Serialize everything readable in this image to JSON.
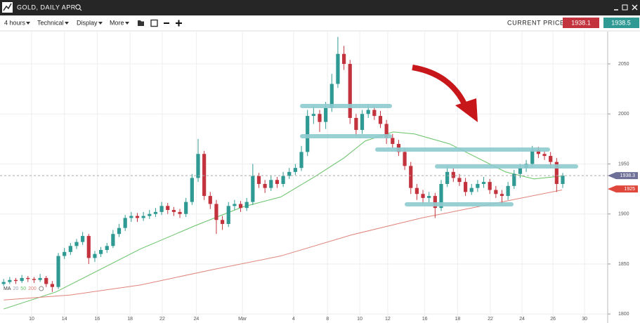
{
  "header": {
    "title": "GOLD, DAILY APR"
  },
  "toolbar": {
    "interval": "4 hours",
    "menus": [
      "Technical",
      "Display",
      "More"
    ],
    "current_price_label": "CURRENT PRICE:",
    "bid": "1938.1",
    "ask": "1938.5"
  },
  "chart_data": {
    "type": "candlestick",
    "series": [
      {
        "up_color": "#2f9a93",
        "down_color": "#c3333d",
        "values": [
          [
            1830,
            1835,
            1828,
            1832
          ],
          [
            1832,
            1837,
            1830,
            1834
          ],
          [
            1834,
            1836,
            1830,
            1833
          ],
          [
            1833,
            1839,
            1831,
            1836
          ],
          [
            1836,
            1838,
            1832,
            1835
          ],
          [
            1835,
            1837,
            1831,
            1834
          ],
          [
            1834,
            1840,
            1832,
            1836
          ],
          [
            1836,
            1838,
            1827,
            1830
          ],
          [
            1830,
            1833,
            1822,
            1827
          ],
          [
            1827,
            1861,
            1825,
            1858
          ],
          [
            1858,
            1866,
            1855,
            1862
          ],
          [
            1862,
            1871,
            1859,
            1868
          ],
          [
            1868,
            1875,
            1865,
            1872
          ],
          [
            1872,
            1882,
            1869,
            1878
          ],
          [
            1878,
            1880,
            1850,
            1856
          ],
          [
            1856,
            1863,
            1852,
            1860
          ],
          [
            1860,
            1867,
            1857,
            1864
          ],
          [
            1864,
            1871,
            1861,
            1868
          ],
          [
            1868,
            1884,
            1866,
            1880
          ],
          [
            1880,
            1890,
            1877,
            1886
          ],
          [
            1886,
            1899,
            1883,
            1896
          ],
          [
            1896,
            1902,
            1892,
            1898
          ],
          [
            1898,
            1901,
            1892,
            1896
          ],
          [
            1896,
            1902,
            1893,
            1898
          ],
          [
            1898,
            1904,
            1895,
            1900
          ],
          [
            1900,
            1906,
            1897,
            1902
          ],
          [
            1902,
            1912,
            1899,
            1908
          ],
          [
            1908,
            1911,
            1900,
            1904
          ],
          [
            1904,
            1907,
            1898,
            1902
          ],
          [
            1902,
            1905,
            1896,
            1900
          ],
          [
            1900,
            1916,
            1897,
            1912
          ],
          [
            1912,
            1940,
            1909,
            1936
          ],
          [
            1936,
            1975,
            1932,
            1960
          ],
          [
            1960,
            1963,
            1914,
            1918
          ],
          [
            1918,
            1922,
            1905,
            1910
          ],
          [
            1910,
            1914,
            1880,
            1894
          ],
          [
            1894,
            1898,
            1884,
            1890
          ],
          [
            1890,
            1912,
            1887,
            1908
          ],
          [
            1908,
            1914,
            1904,
            1910
          ],
          [
            1910,
            1913,
            1902,
            1906
          ],
          [
            1906,
            1916,
            1903,
            1912
          ],
          [
            1912,
            1950,
            1909,
            1938
          ],
          [
            1938,
            1941,
            1926,
            1930
          ],
          [
            1930,
            1934,
            1921,
            1926
          ],
          [
            1926,
            1938,
            1923,
            1934
          ],
          [
            1934,
            1937,
            1926,
            1930
          ],
          [
            1930,
            1942,
            1927,
            1938
          ],
          [
            1938,
            1946,
            1935,
            1942
          ],
          [
            1942,
            1950,
            1939,
            1946
          ],
          [
            1946,
            1968,
            1943,
            1962
          ],
          [
            1962,
            2004,
            1958,
            1998
          ],
          [
            1998,
            2008,
            1990,
            2000
          ],
          [
            2000,
            2004,
            1982,
            1992
          ],
          [
            1992,
            2012,
            1985,
            2006
          ],
          [
            2006,
            2040,
            2002,
            2030
          ],
          [
            2030,
            2077,
            2026,
            2060
          ],
          [
            2060,
            2068,
            2044,
            2050
          ],
          [
            2050,
            2054,
            1990,
            1996
          ],
          [
            1996,
            2000,
            1978,
            1984
          ],
          [
            1984,
            2004,
            1980,
            2000
          ],
          [
            2000,
            2010,
            1996,
            2004
          ],
          [
            2004,
            2008,
            1994,
            1998
          ],
          [
            1998,
            2003,
            1986,
            1990
          ],
          [
            1990,
            1994,
            1970,
            1976
          ],
          [
            1976,
            1980,
            1966,
            1970
          ],
          [
            1970,
            1974,
            1958,
            1962
          ],
          [
            1962,
            1966,
            1944,
            1948
          ],
          [
            1948,
            1952,
            1920,
            1926
          ],
          [
            1926,
            1930,
            1914,
            1920
          ],
          [
            1920,
            1924,
            1910,
            1916
          ],
          [
            1916,
            1922,
            1911,
            1918
          ],
          [
            1918,
            1921,
            1896,
            1906
          ],
          [
            1906,
            1934,
            1903,
            1930
          ],
          [
            1930,
            1948,
            1927,
            1942
          ],
          [
            1942,
            1946,
            1932,
            1936
          ],
          [
            1936,
            1940,
            1928,
            1932
          ],
          [
            1932,
            1936,
            1918,
            1922
          ],
          [
            1922,
            1930,
            1919,
            1926
          ],
          [
            1926,
            1934,
            1922,
            1930
          ],
          [
            1930,
            1937,
            1926,
            1932
          ],
          [
            1932,
            1935,
            1920,
            1924
          ],
          [
            1924,
            1928,
            1916,
            1920
          ],
          [
            1920,
            1924,
            1910,
            1918
          ],
          [
            1918,
            1932,
            1914,
            1928
          ],
          [
            1928,
            1944,
            1925,
            1940
          ],
          [
            1940,
            1950,
            1936,
            1946
          ],
          [
            1946,
            1954,
            1942,
            1950
          ],
          [
            1950,
            1968,
            1947,
            1964
          ],
          [
            1964,
            1967,
            1956,
            1960
          ],
          [
            1960,
            1963,
            1954,
            1958
          ],
          [
            1958,
            1962,
            1946,
            1952
          ],
          [
            1952,
            1956,
            1922,
            1930
          ],
          [
            1930,
            1941,
            1926,
            1938.3
          ]
        ]
      }
    ],
    "moving_averages": [
      {
        "color": "#66c266",
        "x": [
          0,
          8.6,
          16.7,
          22.5,
          31.8,
          39.3,
          45.6,
          51.4,
          56,
          59.5,
          64.1,
          67.6,
          73.4,
          78,
          82.6,
          87.3,
          91.9
        ],
        "values": [
          1805,
          1822,
          1847,
          1865,
          1889,
          1907,
          1917,
          1938,
          1956,
          1973,
          1982,
          1980,
          1970,
          1956,
          1942,
          1935,
          1938
        ]
      },
      {
        "color": "#e0837a",
        "x": [
          0,
          11,
          22.5,
          34.1,
          45.6,
          57.2,
          68.8,
          80.3,
          91.9
        ],
        "values": [
          1814,
          1819,
          1829,
          1844,
          1858,
          1879,
          1896,
          1910,
          1924
        ]
      }
    ],
    "ma_legend": [
      {
        "text": "MA",
        "color": "#333333"
      },
      {
        "text": "20",
        "color": "#9aa0b8"
      },
      {
        "text": "50",
        "color": "#66c266"
      },
      {
        "text": "200",
        "color": "#e0837a"
      }
    ],
    "price_tags": [
      {
        "value": 1938.3,
        "color": "#6d6f96"
      },
      {
        "value": 1925,
        "color": "#e0473c"
      }
    ],
    "xlim": [
      -0.6,
      99.4
    ],
    "xticks": [
      {
        "value": 4.6,
        "label": "10"
      },
      {
        "value": 10,
        "label": "14"
      },
      {
        "value": 15.4,
        "label": "16"
      },
      {
        "value": 20.8,
        "label": "18"
      },
      {
        "value": 26.1,
        "label": "22"
      },
      {
        "value": 31.7,
        "label": "24"
      },
      {
        "value": 39.3,
        "label": "Mar"
      },
      {
        "value": 47.7,
        "label": "4"
      },
      {
        "value": 53.3,
        "label": "8"
      },
      {
        "value": 58.6,
        "label": "10"
      },
      {
        "value": 63.2,
        "label": "12"
      },
      {
        "value": 69.3,
        "label": "16"
      },
      {
        "value": 74.7,
        "label": "18"
      },
      {
        "value": 80.1,
        "label": "22"
      },
      {
        "value": 85.3,
        "label": "24"
      },
      {
        "value": 90.4,
        "label": "26"
      },
      {
        "value": 95.6,
        "label": "30"
      }
    ],
    "ylim": [
      1791,
      2083
    ],
    "yticks": [
      1800,
      1850,
      1900,
      1950,
      2000,
      2050
    ],
    "grid": true
  }
}
